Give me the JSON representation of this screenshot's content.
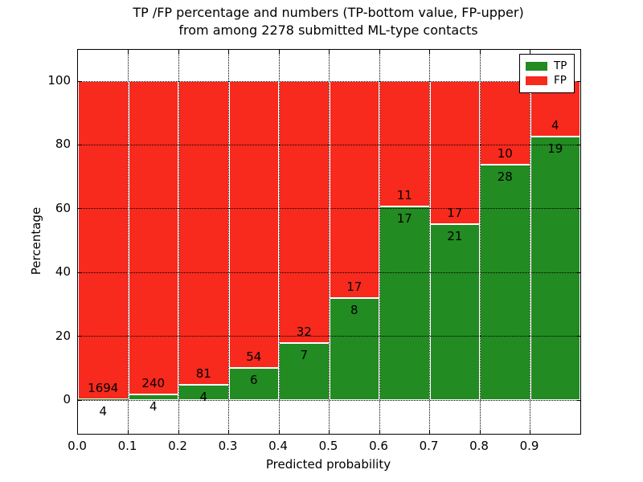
{
  "figure": {
    "title_line1": "TP /FP percentage and numbers (TP-bottom value, FP-upper)",
    "title_line2": "from among 2278 submitted ML-type contacts"
  },
  "chart_data": {
    "type": "bar",
    "variant": "stacked-percentage-histogram",
    "title": "TP /FP percentage and numbers (TP-bottom value, FP-upper)\nfrom among 2278 submitted ML-type contacts",
    "xlabel": "Predicted probability",
    "ylabel": "Percentage",
    "total_contacts_shown_in_title": 2278,
    "bin_edges": [
      0.0,
      0.1,
      0.2,
      0.3,
      0.4,
      0.5,
      0.6,
      0.7,
      0.8,
      0.9,
      1.0
    ],
    "series": [
      {
        "name": "TP",
        "color": "#228b22",
        "counts": [
          4,
          4,
          4,
          6,
          7,
          8,
          17,
          21,
          28,
          19
        ]
      },
      {
        "name": "FP",
        "color": "#f8291d",
        "counts": [
          1694,
          240,
          81,
          54,
          32,
          17,
          11,
          17,
          10,
          4
        ]
      }
    ],
    "tp_percent_of_bin": [
      0.24,
      1.64,
      4.71,
      10.0,
      17.95,
      32.0,
      60.71,
      55.26,
      73.68,
      82.61
    ],
    "bar_label_rule": "TP count printed just below the TP/FP boundary, FP count just above it",
    "x_tick_labels": [
      "0.0",
      "0.1",
      "0.2",
      "0.3",
      "0.4",
      "0.5",
      "0.6",
      "0.7",
      "0.8",
      "0.9"
    ],
    "y_ticks": [
      0,
      20,
      40,
      60,
      80,
      100
    ],
    "xlim": [
      0.0,
      1.0
    ],
    "ylim": [
      -10.8,
      109.8
    ],
    "grid": "dotted-black-on-top",
    "legend_position": "upper right",
    "axis_color": "#000000",
    "background_color": "#ffffff",
    "bar_edge_color": "#ffffff"
  }
}
